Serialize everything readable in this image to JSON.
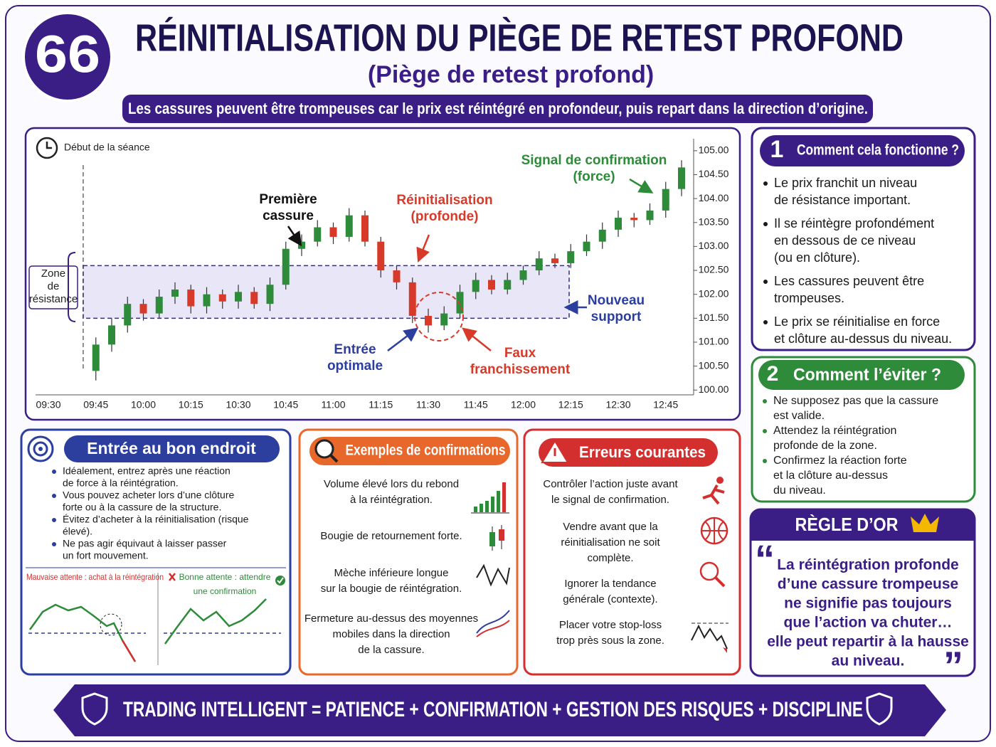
{
  "header": {
    "number": "66",
    "title": "RÉINITIALISATION DU PIÈGE DE RETEST PROFOND",
    "subtitle": "(Piège de retest profond)",
    "banner": "Les cassures peuvent être trompeuses car le prix est réintégré en profondeur, puis repart dans la direction d’origine."
  },
  "chart_data": {
    "type": "candlestick",
    "clock_label": "Début de la séance",
    "zone_label": [
      "Zone",
      "de",
      "résistance"
    ],
    "categories": [
      "09:30",
      null,
      null,
      "09:45",
      null,
      null,
      "10:00",
      null,
      null,
      "10:15",
      null,
      null,
      "10:30",
      null,
      null,
      "10:45",
      null,
      null,
      "11:00",
      null,
      null,
      "11:15",
      null,
      null,
      "11:30",
      null,
      null,
      "11:45",
      null,
      null,
      "12:00",
      null,
      null,
      "12:15",
      null,
      null,
      "12:30",
      null,
      null,
      "12:45",
      null
    ],
    "open": [
      null,
      null,
      null,
      100.4,
      100.95,
      101.35,
      101.8,
      101.6,
      101.95,
      102.1,
      101.75,
      102.0,
      101.85,
      102.05,
      101.8,
      102.2,
      102.95,
      103.1,
      103.4,
      103.2,
      103.65,
      103.1,
      102.5,
      102.25,
      101.55,
      101.35,
      101.6,
      102.05,
      102.3,
      102.1,
      102.3,
      102.5,
      102.75,
      102.65,
      102.9,
      103.1,
      103.35,
      103.6,
      103.55,
      103.75,
      104.2
    ],
    "high": [
      null,
      null,
      null,
      101.1,
      101.5,
      101.95,
      101.9,
      102.1,
      102.25,
      102.2,
      102.15,
      102.1,
      102.2,
      102.15,
      102.35,
      103.1,
      103.25,
      103.55,
      103.5,
      103.8,
      103.75,
      103.2,
      102.6,
      102.35,
      101.7,
      101.75,
      102.2,
      102.45,
      102.4,
      102.45,
      102.6,
      102.9,
      102.85,
      103.05,
      103.25,
      103.5,
      103.75,
      103.7,
      103.9,
      104.35,
      104.8
    ],
    "low": [
      null,
      null,
      null,
      100.2,
      100.8,
      101.2,
      101.45,
      101.5,
      101.8,
      101.6,
      101.6,
      101.7,
      101.7,
      101.7,
      101.65,
      102.1,
      102.8,
      103.0,
      103.05,
      103.1,
      103.0,
      102.35,
      102.1,
      101.4,
      101.2,
      101.25,
      101.5,
      101.9,
      102.0,
      102.0,
      102.2,
      102.4,
      102.55,
      102.55,
      102.8,
      102.95,
      103.2,
      103.4,
      103.45,
      103.6,
      104.05
    ],
    "close": [
      null,
      null,
      null,
      100.95,
      101.35,
      101.8,
      101.6,
      101.95,
      102.1,
      101.75,
      102.0,
      101.85,
      102.05,
      101.8,
      102.2,
      102.95,
      103.1,
      103.4,
      103.2,
      103.65,
      103.1,
      102.5,
      102.25,
      101.55,
      101.35,
      101.6,
      102.05,
      102.3,
      102.1,
      102.3,
      102.5,
      102.75,
      102.65,
      102.9,
      103.1,
      103.35,
      103.6,
      103.55,
      103.75,
      104.2,
      104.65
    ],
    "up_color": "#2e8b3a",
    "down_color": "#d83a2a",
    "resistance_zone": [
      101.5,
      102.6
    ],
    "ylim": [
      99.9,
      105.25
    ],
    "yticks": [
      {
        "value": 100,
        "label": "100.00"
      },
      {
        "value": 100.5,
        "label": "100.50"
      },
      {
        "value": 101,
        "label": "101.00"
      },
      {
        "value": 101.5,
        "label": "101.50"
      },
      {
        "value": 102,
        "label": "102.00"
      },
      {
        "value": 102.5,
        "label": "102.50"
      },
      {
        "value": 103,
        "label": "103.00"
      },
      {
        "value": 103.5,
        "label": "103.50"
      },
      {
        "value": 104,
        "label": "104.00"
      },
      {
        "value": 104.5,
        "label": "104.50"
      },
      {
        "value": 105,
        "label": "105.00"
      }
    ],
    "annotations": [
      {
        "lines": [
          "Première",
          "cassure"
        ]
      },
      {
        "lines": [
          "Réinitialisation",
          "(profonde)"
        ]
      },
      {
        "lines": [
          "Signal de confirmation",
          "(force)"
        ]
      },
      {
        "lines": [
          "Entrée",
          "optimale"
        ]
      },
      {
        "lines": [
          "Faux",
          "franchissement"
        ]
      },
      {
        "lines": [
          "Nouveau",
          "support"
        ]
      }
    ]
  },
  "how_it_works": {
    "number": "1",
    "title": "Comment cela fonctionne ?",
    "bullets": [
      [
        "Le prix franchit un niveau",
        "de résistance important."
      ],
      [
        "Il se réintègre profondément",
        "en dessous de ce niveau",
        "(ou en clôture)."
      ],
      [
        "Les cassures peuvent être",
        "trompeuses."
      ],
      [
        "Le prix se réinitialise en force",
        "et clôture au-dessus du niveau."
      ]
    ]
  },
  "avoid": {
    "number": "2",
    "title": "Comment l’éviter ?",
    "bullets": [
      [
        "Ne supposez pas que la cassure",
        "est valide."
      ],
      [
        "Attendez la réintégration",
        "profonde de la zone."
      ],
      [
        "Confirmez la réaction forte",
        "et la clôture au-dessus",
        "du niveau."
      ]
    ]
  },
  "golden_rule": {
    "title": "RÈGLE D’OR",
    "quote_marks": [
      "“",
      "”"
    ],
    "quote": [
      "La réintégration profonde",
      "d’une cassure trompeuse",
      "ne signifie pas toujours",
      "que l’action va chuter…",
      "elle peut repartir à la hausse",
      "au niveau."
    ]
  },
  "entry": {
    "title": "Entrée au bon endroit",
    "bullets": [
      [
        "Idéalement, entrez après une réaction",
        "de force à la réintégration."
      ],
      [
        "Vous pouvez acheter lors d’une clôture",
        "forte ou à la cassure de la structure."
      ],
      [
        "Évitez d’acheter à la réinitialisation (risque",
        "élevé)."
      ],
      [
        "Ne pas agir équivaut à laisser passer",
        "un fort mouvement."
      ]
    ],
    "bad": "Mauvaise attente : achat à la réintégration",
    "good": [
      "Bonne attente : attendre",
      "une confirmation"
    ]
  },
  "confirmations": {
    "title": "Exemples de confirmations",
    "items": [
      [
        "Volume élevé lors du rebond",
        "à la réintégration."
      ],
      [
        "Bougie de retournement forte."
      ],
      [
        "Mèche inférieure longue",
        "sur la bougie de réintégration."
      ],
      [
        "Fermeture au-dessus des moyennes",
        "mobiles dans la direction",
        "de la cassure."
      ]
    ]
  },
  "mistakes": {
    "title": "Erreurs courantes",
    "items": [
      [
        "Contrôler l’action juste avant",
        "le signal de confirmation."
      ],
      [
        "Vendre avant que la",
        "réinitialisation ne soit",
        "complète."
      ],
      [
        "Ignorer la tendance",
        "générale (contexte)."
      ],
      [
        "Placer votre stop-loss",
        "trop près sous la zone."
      ]
    ]
  },
  "footer": "TRADING INTELLIGENT = PATIENCE + CONFIRMATION + GESTION DES RISQUES + DISCIPLINE"
}
